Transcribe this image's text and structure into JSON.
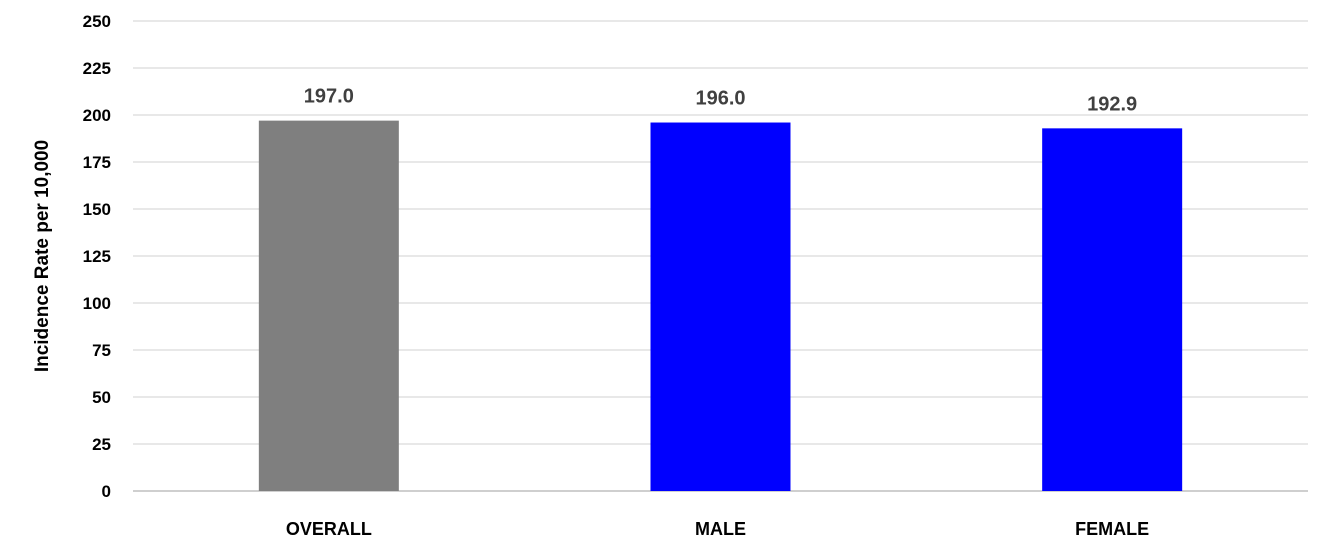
{
  "chart_data": {
    "type": "bar",
    "title": "",
    "xlabel": "",
    "ylabel": "Incidence Rate per 10,000",
    "ylim": [
      0,
      250
    ],
    "yticks": [
      0,
      25,
      50,
      75,
      100,
      125,
      150,
      175,
      200,
      225,
      250
    ],
    "grid": true,
    "categories": [
      "OVERALL",
      "MALE",
      "FEMALE"
    ],
    "values": [
      197.0,
      196.0,
      192.9
    ],
    "data_labels": [
      "197.0",
      "196.0",
      "192.9"
    ],
    "colors": [
      "#7f7f7f",
      "#0000ff",
      "#0000ff"
    ]
  }
}
